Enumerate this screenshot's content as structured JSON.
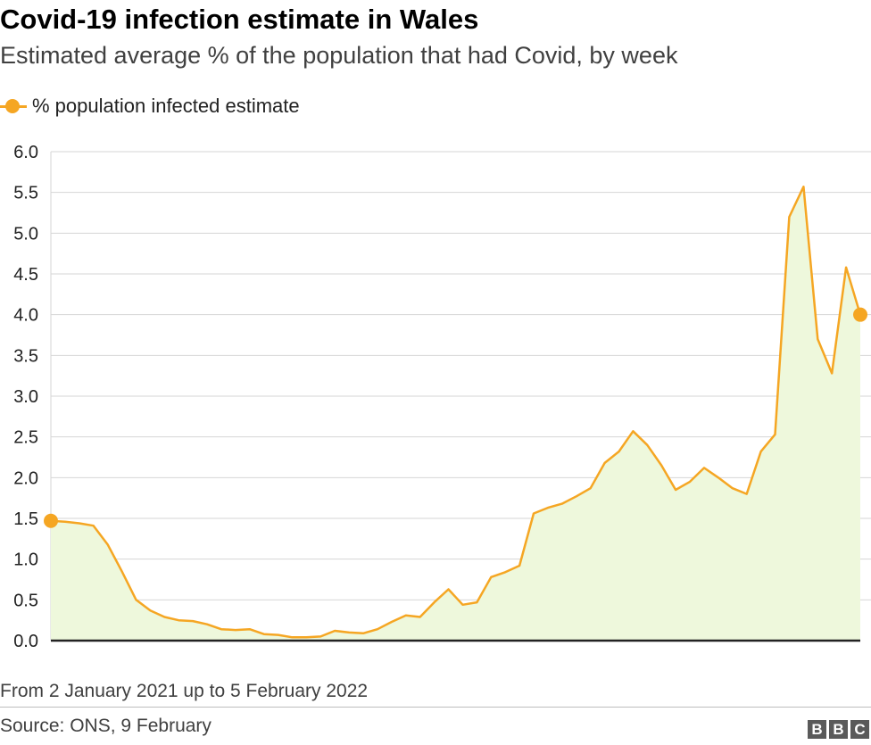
{
  "chart_data": {
    "type": "area",
    "title": "Covid-19 infection estimate in Wales",
    "subtitle": "Estimated average % of the population that had Covid, by week",
    "ylim": [
      0,
      6
    ],
    "yticks": [
      "0.0",
      "0.5",
      "1.0",
      "1.5",
      "2.0",
      "2.5",
      "3.0",
      "3.5",
      "4.0",
      "4.5",
      "5.0",
      "5.5",
      "6.0"
    ],
    "grid": true,
    "legend_position": "top-left",
    "series": [
      {
        "name": "%  population infected estimate",
        "values": [
          1.47,
          1.46,
          1.44,
          1.41,
          1.18,
          0.85,
          0.5,
          0.37,
          0.29,
          0.25,
          0.24,
          0.2,
          0.14,
          0.13,
          0.14,
          0.08,
          0.07,
          0.04,
          0.04,
          0.05,
          0.12,
          0.1,
          0.09,
          0.14,
          0.23,
          0.31,
          0.29,
          0.47,
          0.63,
          0.44,
          0.47,
          0.78,
          0.84,
          0.92,
          1.56,
          1.63,
          1.68,
          1.77,
          1.87,
          2.18,
          2.32,
          2.57,
          2.4,
          2.15,
          1.85,
          1.95,
          2.12,
          2.0,
          1.87,
          1.8,
          2.32,
          2.53,
          5.2,
          5.57,
          3.7,
          3.28,
          4.58,
          4.0
        ]
      }
    ],
    "x_range_note": "From 2 January 2021 up to 5 February 2022",
    "markers": [
      "first",
      "last"
    ],
    "colors": {
      "line": "#f5a623",
      "fill": "#eef8dc",
      "grid": "#d6d6d6",
      "baseline": "#222222"
    }
  },
  "note": "From 2 January 2021 up to 5 February 2022",
  "source": "Source: ONS, 9 February",
  "logo": [
    "B",
    "B",
    "C"
  ]
}
